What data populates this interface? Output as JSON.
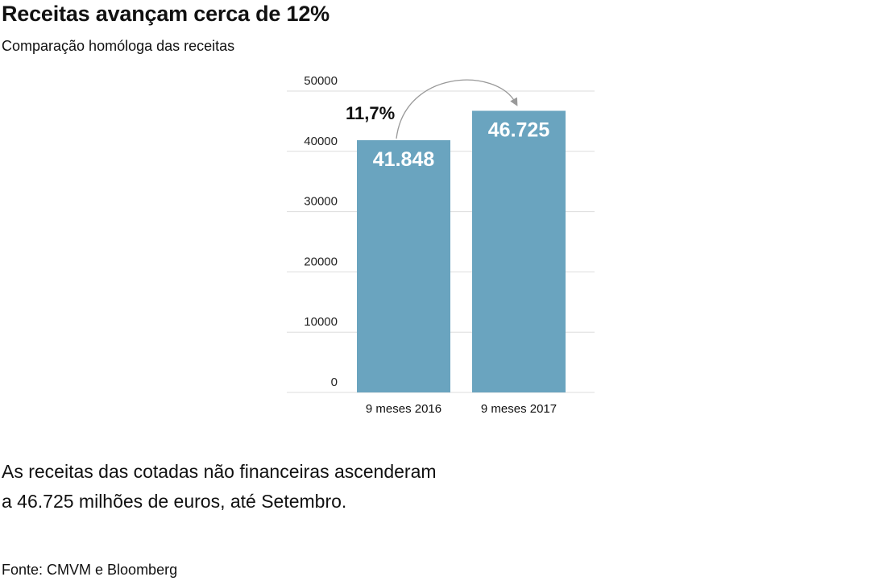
{
  "header": {
    "title": "Receitas avançam cerca de 12%",
    "subtitle": "Comparação homóloga das receitas"
  },
  "chart_data": {
    "type": "bar",
    "categories": [
      "9 meses 2016",
      "9 meses 2017"
    ],
    "values": [
      41848,
      46725
    ],
    "value_labels": [
      "41.848",
      "46.725"
    ],
    "ylim": [
      0,
      50000
    ],
    "yticks": [
      0,
      10000,
      20000,
      30000,
      40000,
      50000
    ],
    "ytick_labels": [
      "0",
      "10000",
      "20000",
      "30000",
      "40000",
      "50000"
    ],
    "grid": true,
    "legend": "none",
    "annotation": "11,7%",
    "bar_color": "#6aa4bf",
    "grid_color": "#dddddd",
    "arrow_color": "#999999"
  },
  "description": {
    "line1": "As receitas das cotadas não financeiras ascenderam",
    "line2": "a 46.725 milhões de euros, até Setembro."
  },
  "source": "Fonte: CMVM e Bloomberg"
}
